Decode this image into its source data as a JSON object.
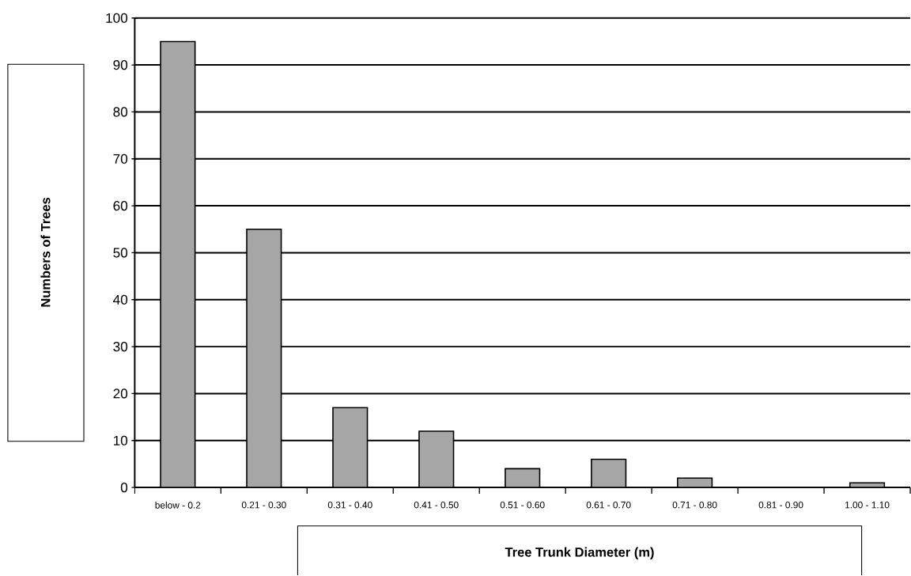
{
  "chart_data": {
    "type": "bar",
    "xlabel": "Tree Trunk Diameter (m)",
    "ylabel": "Numbers of Trees",
    "categories": [
      "below - 0.2",
      "0.21 - 0.30",
      "0.31 - 0.40",
      "0.41 - 0.50",
      "0.51 - 0.60",
      "0.61 - 0.70",
      "0.71 - 0.80",
      "0.81 - 0.90",
      "1.00 - 1.10"
    ],
    "values": [
      95,
      55,
      17,
      12,
      4,
      6,
      2,
      0,
      1
    ],
    "color": "#a6a6a6",
    "ylim": [
      0,
      100
    ],
    "yticks": [
      0,
      10,
      20,
      30,
      40,
      50,
      60,
      70,
      80,
      90,
      100
    ],
    "grid": "y"
  }
}
